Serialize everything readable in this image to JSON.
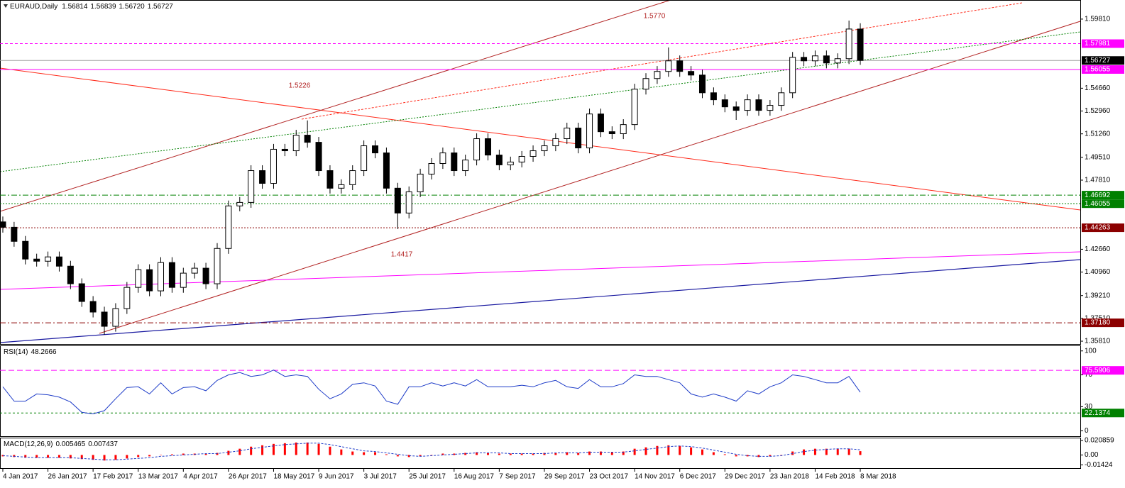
{
  "chart_data": [
    {
      "type": "candlestick",
      "title": "EURAUD,Daily",
      "quote": [
        "1.56814",
        "1.56839",
        "1.56720",
        "1.56727"
      ],
      "x": [
        0,
        4,
        8,
        12,
        16,
        20,
        24,
        28,
        32,
        36,
        40,
        44,
        48,
        52,
        56,
        60,
        64,
        68,
        72,
        76,
        80,
        84,
        88,
        92,
        96,
        100,
        104,
        108,
        112,
        116,
        120,
        124,
        128,
        132,
        136,
        140,
        144,
        148,
        152,
        156,
        160,
        164,
        168,
        172,
        176,
        180,
        184,
        188,
        192,
        196,
        200,
        204,
        208,
        212,
        216,
        220,
        224,
        228,
        232,
        236,
        240,
        244,
        248,
        252,
        256,
        260,
        264,
        268,
        272,
        276,
        280,
        284,
        288,
        292,
        296,
        300,
        304
      ],
      "open": [
        1.447,
        1.443,
        1.4325,
        1.4193,
        1.4177,
        1.4209,
        1.414,
        1.4009,
        1.3877,
        1.3798,
        1.3692,
        1.3824,
        1.3982,
        1.4114,
        1.3956,
        1.4167,
        1.3982,
        1.4088,
        1.4125,
        1.4009,
        1.4272,
        1.4589,
        1.4615,
        1.4852,
        1.4757,
        1.5011,
        1.5,
        1.5116,
        1.5063,
        1.4852,
        1.4721,
        1.4747,
        1.4852,
        1.5037,
        1.4984,
        1.4721,
        1.4536,
        1.4694,
        1.4826,
        1.4905,
        1.4984,
        1.4852,
        1.4931,
        1.509,
        1.4968,
        1.4895,
        1.4916,
        1.4958,
        1.5,
        1.5037,
        1.509,
        1.5169,
        1.5021,
        1.5274,
        1.5142,
        1.5127,
        1.5195,
        1.5459,
        1.5538,
        1.5591,
        1.567,
        1.5591,
        1.5564,
        1.5432,
        1.538,
        1.5327,
        1.5301,
        1.538,
        1.5301,
        1.5338,
        1.5432,
        1.5696,
        1.567,
        1.5707,
        1.5654,
        1.5686,
        1.5907
      ],
      "high": [
        1.451,
        1.447,
        1.4365,
        1.4233,
        1.4249,
        1.4249,
        1.418,
        1.4049,
        1.3917,
        1.3838,
        1.3864,
        1.4022,
        1.4154,
        1.4154,
        1.4207,
        1.4207,
        1.4128,
        1.4165,
        1.4165,
        1.4312,
        1.4629,
        1.4655,
        1.4892,
        1.4892,
        1.5051,
        1.5051,
        1.5156,
        1.5226,
        1.5103,
        1.4892,
        1.4787,
        1.4892,
        1.5077,
        1.5077,
        1.5024,
        1.4761,
        1.4734,
        1.4866,
        1.4945,
        1.5024,
        1.5024,
        1.4971,
        1.513,
        1.513,
        1.5008,
        1.4956,
        1.4998,
        1.504,
        1.5077,
        1.513,
        1.5209,
        1.5209,
        1.5314,
        1.5314,
        1.5182,
        1.5235,
        1.5499,
        1.5578,
        1.5631,
        1.577,
        1.571,
        1.5631,
        1.5604,
        1.5472,
        1.542,
        1.5367,
        1.542,
        1.542,
        1.5378,
        1.5472,
        1.5736,
        1.5736,
        1.5747,
        1.5747,
        1.5726,
        1.597,
        1.595
      ],
      "low": [
        1.439,
        1.4285,
        1.4153,
        1.4137,
        1.4137,
        1.41,
        1.3969,
        1.3837,
        1.3758,
        1.3629,
        1.3652,
        1.3784,
        1.3942,
        1.3916,
        1.3916,
        1.3942,
        1.3942,
        1.4048,
        1.3969,
        1.3969,
        1.4232,
        1.4549,
        1.4575,
        1.4717,
        1.4717,
        1.496,
        1.496,
        1.5023,
        1.4812,
        1.4681,
        1.4681,
        1.4707,
        1.4812,
        1.4944,
        1.4681,
        1.4417,
        1.4496,
        1.4654,
        1.4786,
        1.4865,
        1.4812,
        1.4812,
        1.4891,
        1.4928,
        1.4855,
        1.4855,
        1.4876,
        1.4918,
        1.496,
        1.4997,
        1.505,
        1.4981,
        1.4981,
        1.5102,
        1.5087,
        1.5087,
        1.5155,
        1.5419,
        1.5498,
        1.5551,
        1.5551,
        1.5524,
        1.5392,
        1.534,
        1.5287,
        1.523,
        1.5261,
        1.5261,
        1.5261,
        1.5298,
        1.5392,
        1.563,
        1.563,
        1.5614,
        1.5614,
        1.5646,
        1.564
      ],
      "close": [
        1.443,
        1.4325,
        1.4193,
        1.4177,
        1.4209,
        1.414,
        1.4009,
        1.3877,
        1.3798,
        1.3692,
        1.3824,
        1.3982,
        1.4114,
        1.3956,
        1.4167,
        1.3982,
        1.4088,
        1.4125,
        1.4009,
        1.4272,
        1.4589,
        1.4615,
        1.4852,
        1.4757,
        1.5011,
        1.5,
        1.5116,
        1.5063,
        1.4852,
        1.4721,
        1.4747,
        1.4852,
        1.5037,
        1.4984,
        1.4721,
        1.4536,
        1.4694,
        1.4826,
        1.4905,
        1.4984,
        1.4852,
        1.4931,
        1.509,
        1.4968,
        1.4895,
        1.4916,
        1.4958,
        1.5,
        1.5037,
        1.509,
        1.5169,
        1.5021,
        1.5274,
        1.5142,
        1.5127,
        1.5195,
        1.5459,
        1.5538,
        1.5591,
        1.567,
        1.5591,
        1.5564,
        1.5432,
        1.538,
        1.5327,
        1.5301,
        1.538,
        1.5301,
        1.5338,
        1.5432,
        1.5696,
        1.567,
        1.5707,
        1.5654,
        1.5686,
        1.5907,
        1.5673
      ],
      "xlim": [
        -1,
        382
      ],
      "xticks": [
        {
          "value": 0,
          "label": "4 Jan 2017"
        },
        {
          "value": 16,
          "label": "26 Jan 2017"
        },
        {
          "value": 32,
          "label": "17 Feb 2017"
        },
        {
          "value": 48,
          "label": "13 Mar 2017"
        },
        {
          "value": 64,
          "label": "4 Apr 2017"
        },
        {
          "value": 80,
          "label": "26 Apr 2017"
        },
        {
          "value": 96,
          "label": "18 May 2017"
        },
        {
          "value": 112,
          "label": "9 Jun 2017"
        },
        {
          "value": 128,
          "label": "3 Jul 2017"
        },
        {
          "value": 144,
          "label": "25 Jul 2017"
        },
        {
          "value": 160,
          "label": "16 Aug 2017"
        },
        {
          "value": 176,
          "label": "7 Sep 2017"
        },
        {
          "value": 192,
          "label": "29 Sep 2017"
        },
        {
          "value": 208,
          "label": "23 Oct 2017"
        },
        {
          "value": 224,
          "label": "14 Nov 2017"
        },
        {
          "value": 240,
          "label": "6 Dec 2017"
        },
        {
          "value": 256,
          "label": "29 Dec 2017"
        },
        {
          "value": 272,
          "label": "23 Jan 2018"
        },
        {
          "value": 288,
          "label": "14 Feb 2018"
        },
        {
          "value": 304,
          "label": "8 Mar 2018"
        }
      ],
      "ylim": [
        1.356,
        1.6118
      ],
      "yticks": [
        {
          "value": 1.5981,
          "label": "1.59810"
        },
        {
          "value": 1.5466,
          "label": "1.54660"
        },
        {
          "value": 1.5296,
          "label": "1.52960"
        },
        {
          "value": 1.5126,
          "label": "1.51260"
        },
        {
          "value": 1.4951,
          "label": "1.49510"
        },
        {
          "value": 1.4781,
          "label": "1.47810"
        },
        {
          "value": 1.4266,
          "label": "1.42660"
        },
        {
          "value": 1.4096,
          "label": "1.40960"
        },
        {
          "value": 1.3921,
          "label": "1.39210"
        },
        {
          "value": 1.3751,
          "label": "1.37510"
        },
        {
          "value": 1.3581,
          "label": "1.35810"
        }
      ],
      "levels": [
        {
          "value": 1.57981,
          "color": "#ff00ff",
          "dash": "4 3"
        },
        {
          "value": 1.56727,
          "color": "#000000",
          "line_color": "#a0a0a0"
        },
        {
          "value": 1.56055,
          "color": "#ff00ff"
        },
        {
          "value": 1.46692,
          "color": "#008000",
          "dash": "8 3 2 3"
        },
        {
          "value": 1.46055,
          "color": "#008000",
          "dash": "2 2"
        },
        {
          "value": 1.44263,
          "color": "#8b0000",
          "dash": "2 2"
        },
        {
          "value": 1.3718,
          "label": "1.37180",
          "color": "#8b0000",
          "dash": "8 3 2 3"
        }
      ],
      "annotations": [
        "1.5770",
        "1.5226",
        "1.4417"
      ]
    },
    {
      "type": "line",
      "title": "RSI(14)",
      "color": "#1e3cc8",
      "x": [
        0,
        4,
        8,
        12,
        16,
        20,
        24,
        28,
        32,
        36,
        40,
        44,
        48,
        52,
        56,
        60,
        64,
        68,
        72,
        76,
        80,
        84,
        88,
        92,
        96,
        100,
        104,
        108,
        112,
        116,
        120,
        124,
        128,
        132,
        136,
        140,
        144,
        148,
        152,
        156,
        160,
        164,
        168,
        172,
        176,
        180,
        184,
        188,
        192,
        196,
        200,
        204,
        208,
        212,
        216,
        220,
        224,
        228,
        232,
        236,
        240,
        244,
        248,
        252,
        256,
        260,
        264,
        268,
        272,
        276,
        280,
        284,
        288,
        292,
        296,
        300,
        304
      ],
      "values": [
        55,
        37,
        37,
        46,
        45,
        42,
        36,
        23,
        21,
        25,
        40,
        54,
        55,
        46,
        60,
        46,
        54,
        55,
        50,
        63,
        70,
        73,
        68,
        70,
        76,
        68,
        70,
        68,
        52,
        40,
        46,
        58,
        60,
        56,
        37,
        33,
        55,
        55,
        60,
        56,
        60,
        56,
        64,
        55,
        55,
        55,
        57,
        55,
        60,
        63,
        55,
        53,
        64,
        55,
        55,
        59,
        70,
        68,
        68,
        64,
        60,
        46,
        42,
        46,
        42,
        37,
        50,
        46,
        55,
        60,
        70,
        68,
        64,
        60,
        60,
        68,
        48.2666
      ],
      "xlim": [
        -1,
        382
      ],
      "ylim": [
        -7,
        106
      ],
      "yticks": [
        100,
        70,
        30,
        0
      ],
      "levels": [
        {
          "value": 75.5906,
          "color": "#ff00ff",
          "dash": "8 4"
        },
        {
          "value": 22.1374,
          "color": "#008000",
          "dash": "3 3"
        }
      ]
    },
    {
      "type": "macd",
      "title": "MACD(12,26,9)",
      "x": [
        0,
        4,
        8,
        12,
        16,
        20,
        24,
        28,
        32,
        36,
        40,
        44,
        48,
        52,
        56,
        60,
        64,
        68,
        72,
        76,
        80,
        84,
        88,
        92,
        96,
        100,
        104,
        108,
        112,
        116,
        120,
        124,
        128,
        132,
        136,
        140,
        144,
        148,
        152,
        156,
        160,
        164,
        168,
        172,
        176,
        180,
        184,
        188,
        192,
        196,
        200,
        204,
        208,
        212,
        216,
        220,
        224,
        228,
        232,
        236,
        240,
        244,
        248,
        252,
        256,
        260,
        264,
        268,
        272,
        276,
        280,
        284,
        288,
        292,
        296,
        300,
        304
      ],
      "series": [
        {
          "kind": "bar",
          "color": "#ff0000",
          "values": [
            -0.002,
            -0.003,
            -0.004,
            -0.004,
            -0.004,
            -0.004,
            -0.005,
            -0.006,
            -0.007,
            -0.008,
            -0.007,
            -0.005,
            -0.003,
            -0.002,
            0,
            0.001,
            0.002,
            0.002,
            0.002,
            0.003,
            0.006,
            0.009,
            0.012,
            0.014,
            0.016,
            0.017,
            0.018,
            0.018,
            0.016,
            0.012,
            0.008,
            0.005,
            0.004,
            0.004,
            0.001,
            -0.002,
            -0.003,
            -0.002,
            0,
            0.002,
            0.002,
            0.003,
            0.004,
            0.003,
            0.002,
            0.002,
            0.002,
            0.002,
            0.003,
            0.003,
            0.004,
            0.003,
            0.005,
            0.005,
            0.004,
            0.005,
            0.009,
            0.011,
            0.013,
            0.014,
            0.013,
            0.011,
            0.008,
            0.004,
            0.001,
            -0.002,
            -0.002,
            -0.003,
            -0.002,
            0,
            0.005,
            0.008,
            0.009,
            0.009,
            0.009,
            0.009,
            0.005465
          ]
        },
        {
          "kind": "line",
          "color": "#1e3cc8",
          "values": [
            -0.001,
            -0.002,
            -0.003,
            -0.004,
            -0.004,
            -0.004,
            -0.004,
            -0.005,
            -0.006,
            -0.007,
            -0.007,
            -0.006,
            -0.005,
            -0.004,
            -0.002,
            -0.001,
            0,
            0.001,
            0.002,
            0.002,
            0.004,
            0.006,
            0.009,
            0.011,
            0.013,
            0.015,
            0.016,
            0.017,
            0.017,
            0.015,
            0.012,
            0.009,
            0.006,
            0.005,
            0.003,
            0.001,
            -0.001,
            -0.002,
            -0.001,
            0,
            0.001,
            0.002,
            0.003,
            0.003,
            0.003,
            0.002,
            0.002,
            0.002,
            0.002,
            0.003,
            0.003,
            0.003,
            0.004,
            0.004,
            0.004,
            0.004,
            0.006,
            0.008,
            0.01,
            0.012,
            0.013,
            0.012,
            0.01,
            0.007,
            0.004,
            0.001,
            -0.001,
            -0.002,
            -0.002,
            -0.001,
            0.002,
            0.005,
            0.007,
            0.008,
            0.009,
            0.009,
            0.007437
          ]
        }
      ],
      "xlim": [
        -1,
        382
      ],
      "ylim": [
        -0.019,
        0.024
      ],
      "yticks": [
        0.020859,
        {
          "value": 0,
          "label": "0.00"
        },
        -0.01424
      ]
    }
  ]
}
